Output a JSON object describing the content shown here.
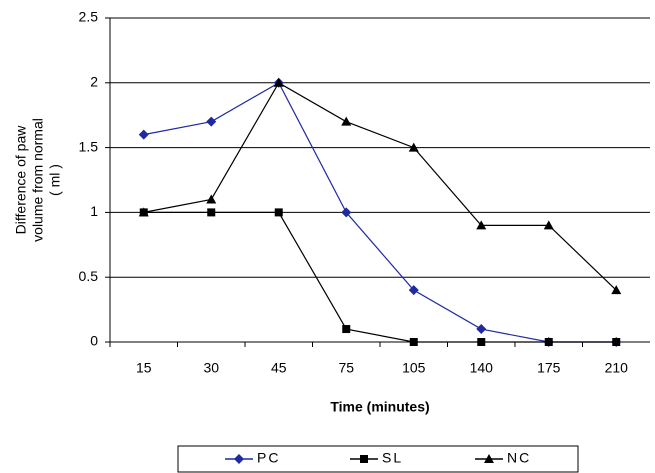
{
  "chart_data": {
    "type": "line",
    "x_label": "Time (minutes)",
    "y_label": [
      "Difference of paw",
      "volume from normal",
      "( ml )"
    ],
    "categories": [
      "15",
      "30",
      "45",
      "75",
      "105",
      "140",
      "175",
      "210"
    ],
    "series": [
      {
        "name": "PC",
        "color": "#1f2aa0",
        "marker": "diamond",
        "values": [
          1.6,
          1.7,
          2.0,
          1.0,
          0.4,
          0.1,
          0,
          0
        ]
      },
      {
        "name": "SL",
        "color": "#000000",
        "marker": "square",
        "values": [
          1.0,
          1.0,
          1.0,
          0.1,
          0,
          0,
          0,
          0
        ]
      },
      {
        "name": "NC",
        "color": "#000000",
        "marker": "triangle",
        "values": [
          1.0,
          1.1,
          2.0,
          1.7,
          1.5,
          0.9,
          0.9,
          0.4
        ]
      }
    ],
    "ylim": [
      0,
      2.5
    ],
    "yticks": [
      0,
      0.5,
      1,
      1.5,
      2,
      2.5
    ],
    "grid": true,
    "legend": "bottom"
  }
}
